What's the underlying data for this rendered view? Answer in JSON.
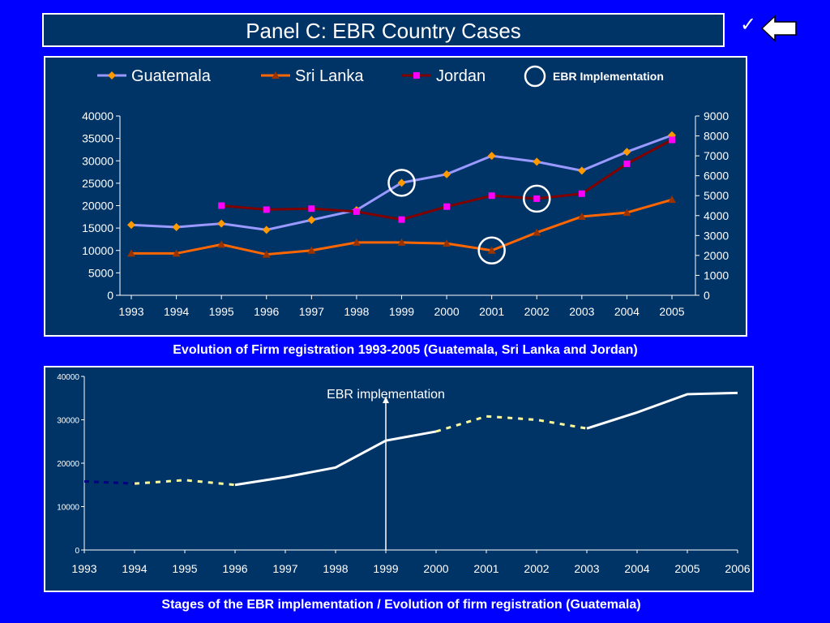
{
  "slide": {
    "title": "Panel C: EBR Country Cases",
    "nav_check": "✓",
    "caption_top": "Evolution of Firm registration 1993-2005 (Guatemala, Sri Lanka and Jordan)",
    "caption_bottom": "Stages of the EBR implementation / Evolution of firm registration (Guatemala)"
  },
  "colors": {
    "background": "#0000FF",
    "panel": "#003366",
    "guatemala": "#9999FF",
    "guatemala_marker": "#FF9900",
    "sri_lanka": "#FF6600",
    "sri_lanka_marker": "#993300",
    "jordan": "#800000",
    "jordan_marker": "#FF00FF",
    "dashed_navy": "#000080",
    "dashed_yellow": "#FFFF99"
  },
  "chart_data": [
    {
      "type": "line",
      "x": [
        "1993",
        "1994",
        "1995",
        "1996",
        "1997",
        "1998",
        "1999",
        "2000",
        "2001",
        "2002",
        "2003",
        "2004",
        "2005"
      ],
      "left_axis": {
        "ylim": [
          0,
          40000
        ],
        "ticks": [
          "0",
          "5000",
          "10000",
          "15000",
          "20000",
          "25000",
          "30000",
          "35000",
          "40000"
        ]
      },
      "right_axis": {
        "ylim": [
          0,
          9000
        ],
        "ticks": [
          "0",
          "1000",
          "2000",
          "3000",
          "4000",
          "5000",
          "6000",
          "7000",
          "8000",
          "9000"
        ]
      },
      "legend": {
        "guatemala": "Guatemala",
        "sri_lanka": "Sri Lanka",
        "jordan": "Jordan",
        "ebr": "EBR Implementation"
      },
      "series": [
        {
          "name": "Guatemala",
          "axis": "left",
          "values": [
            15700,
            15200,
            16000,
            14600,
            16800,
            19000,
            25100,
            27000,
            31100,
            29800,
            27800,
            32000,
            35700
          ]
        },
        {
          "name": "Sri Lanka",
          "axis": "right",
          "values": [
            2100,
            2100,
            2550,
            2050,
            2250,
            2650,
            2650,
            2600,
            2250,
            3150,
            3950,
            4150,
            4800
          ]
        },
        {
          "name": "Jordan",
          "axis": "right",
          "values": [
            null,
            null,
            4500,
            4300,
            4350,
            4200,
            3800,
            4450,
            5000,
            4850,
            5100,
            6600,
            7800
          ]
        }
      ],
      "ebr_markers": [
        {
          "series": "Guatemala",
          "x": "1999"
        },
        {
          "series": "Sri Lanka",
          "x": "2001"
        },
        {
          "series": "Jordan",
          "x": "2002"
        }
      ]
    },
    {
      "type": "line",
      "x": [
        "1993",
        "1994",
        "1995",
        "1996",
        "1997",
        "1998",
        "1999",
        "2000",
        "2001",
        "2002",
        "2003",
        "2004",
        "2005",
        "2006"
      ],
      "ylim": [
        0,
        40000
      ],
      "y_ticks": [
        "0",
        "10000",
        "20000",
        "30000",
        "40000"
      ],
      "annotation": "EBR implementation",
      "annotation_x": "1999",
      "segments": [
        {
          "style": "dashed-navy",
          "points": [
            [
              "1993",
              15800
            ],
            [
              "1994",
              15300
            ]
          ]
        },
        {
          "style": "dashed-yellow",
          "points": [
            [
              "1994",
              15300
            ],
            [
              "1995",
              16100
            ],
            [
              "1996",
              15000
            ]
          ]
        },
        {
          "style": "solid-white",
          "points": [
            [
              "1996",
              15000
            ],
            [
              "1997",
              16800
            ],
            [
              "1998",
              19000
            ],
            [
              "1999",
              25200
            ],
            [
              "2000",
              27300
            ]
          ]
        },
        {
          "style": "dashed-yellow",
          "points": [
            [
              "2000",
              27300
            ],
            [
              "2001",
              30800
            ],
            [
              "2002",
              30000
            ],
            [
              "2003",
              28000
            ]
          ]
        },
        {
          "style": "solid-white",
          "points": [
            [
              "2003",
              28000
            ],
            [
              "2004",
              31700
            ],
            [
              "2005",
              35900
            ],
            [
              "2006",
              36200
            ]
          ]
        }
      ]
    }
  ]
}
